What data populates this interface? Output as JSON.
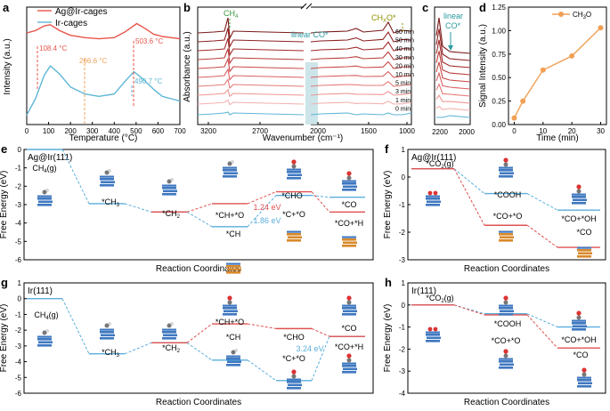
{
  "colors": {
    "ag_ir": "#e8554a",
    "ir": "#5fb6d6",
    "orange": "#f0a055",
    "teal": "#2b9aa0",
    "green": "#3a9a3a",
    "olive": "#8f8f00",
    "ch_dash": "#5aaedc",
    "co_dash": "#e05050",
    "struct_blue": "#3f78c0",
    "struct_orange": "#d9882a"
  },
  "panels": {
    "a": {
      "letter": "a",
      "ylabel": "Intensity (a.u.)",
      "xlabel": "Temperature (°C)",
      "legend": [
        "Ag@Ir-cages",
        "Ir-cages"
      ],
      "annotations": [
        "108.4 °C",
        "266.6 °C",
        "503.6 °C",
        "490.7 °C"
      ]
    },
    "b": {
      "letter": "b",
      "ylabel": "Absorbance (a.u.)",
      "xlabel": "Wavenumber (cm⁻¹)",
      "label_ch4": "CH",
      "label_ch4_sub": "4",
      "label_linear": "linear CO*",
      "label_chxo": "CH",
      "label_chxo_sub": "X",
      "label_chxo_tail": "O*",
      "times": [
        "60 min",
        "50 min",
        "40 min",
        "30 min",
        "20 min",
        "10 min",
        "5 min",
        "3 min",
        "1 min",
        "0 min"
      ]
    },
    "c": {
      "letter": "c",
      "label_line1": "linear",
      "label_line2": "CO*"
    },
    "d": {
      "letter": "d",
      "ylabel": "Signal Intensity (a.u.)",
      "xlabel": "Time (min)",
      "legend_main": "CH",
      "legend_sub": "3",
      "legend_tail": "O"
    },
    "e": {
      "letter": "e",
      "catalyst": "Ag@Ir(111)",
      "ylabel": "Free Energy (eV)",
      "xlabel": "Reaction Coordinates",
      "labels": [
        "CH",
        "*CH",
        "*CH",
        "*CH+*O",
        "*CH",
        "*CHO",
        "*C+*O",
        "*CO",
        "*CO+*H"
      ],
      "barriers": [
        "1.24 eV",
        "1.86 eV"
      ]
    },
    "f": {
      "letter": "f",
      "catalyst": "Ag@Ir(111)",
      "ylabel": "Free Energy (eV)",
      "xlabel": "Reaction Coordinates",
      "labels": [
        "*CO",
        "*COOH",
        "*CO+*O",
        "*CO+*OH",
        "*CO"
      ]
    },
    "g": {
      "letter": "g",
      "catalyst": "Ir(111)",
      "ylabel": "Free Energy (eV)",
      "xlabel": "Reaction Coordinates",
      "labels": [
        "CH",
        "*CH",
        "*CH",
        "*CH+*O",
        "*CH",
        "*CHO",
        "*C+*O",
        "*CO",
        "*CO+*H"
      ],
      "barriers": [
        "3.24 eV"
      ]
    },
    "h": {
      "letter": "h",
      "catalyst": "Ir(111)",
      "ylabel": "Free Energy (eV)",
      "xlabel": "Reaction Coordinates",
      "labels": [
        "*CO",
        "*COOH",
        "*CO+*O",
        "*CO+*OH",
        "*CO"
      ]
    }
  },
  "chart_data": [
    {
      "panel": "a",
      "type": "line",
      "title": "",
      "xlabel": "Temperature (°C)",
      "ylabel": "Intensity (a.u.)",
      "xlim": [
        0,
        700
      ],
      "ylim": [
        0,
        1
      ],
      "xticks": [
        0,
        100,
        200,
        300,
        400,
        500,
        600,
        700
      ],
      "series": [
        {
          "name": "Ag@Ir-cages",
          "x": [
            0,
            40,
            80,
            108,
            150,
            200,
            266,
            330,
            400,
            450,
            503,
            540,
            580,
            620,
            660,
            700
          ],
          "y": [
            0.78,
            0.8,
            0.84,
            0.85,
            0.8,
            0.76,
            0.74,
            0.73,
            0.74,
            0.79,
            0.86,
            0.82,
            0.77,
            0.75,
            0.74,
            0.73
          ]
        },
        {
          "name": "Ir-cages",
          "x": [
            0,
            40,
            80,
            108,
            150,
            200,
            266,
            330,
            400,
            450,
            490,
            530,
            580,
            620,
            660,
            700
          ],
          "y": [
            0.08,
            0.22,
            0.42,
            0.5,
            0.43,
            0.32,
            0.26,
            0.24,
            0.26,
            0.37,
            0.45,
            0.39,
            0.3,
            0.24,
            0.22,
            0.2
          ]
        }
      ]
    },
    {
      "panel": "b",
      "type": "line",
      "title": "",
      "xlabel": "Wavenumber (cm⁻¹)",
      "ylabel": "Absorbance (a.u.)",
      "xticks": [
        3200,
        2700,
        2000,
        1500,
        1000
      ],
      "series_names": [
        "60 min",
        "50 min",
        "40 min",
        "30 min",
        "20 min",
        "10 min",
        "5 min",
        "3 min",
        "1 min",
        "0 min"
      ]
    },
    {
      "panel": "c",
      "type": "line",
      "title": "",
      "xticks": [
        2200,
        2000
      ]
    },
    {
      "panel": "d",
      "type": "line",
      "title": "",
      "xlabel": "Time (min)",
      "ylabel": "Signal Intensity (a.u.)",
      "xlim": [
        -2,
        32
      ],
      "ylim": [
        0,
        1.25
      ],
      "xticks": [
        0,
        10,
        20,
        30
      ],
      "yticks": [
        0.0,
        0.25,
        0.5,
        0.75,
        1.0,
        1.25
      ],
      "series": [
        {
          "name": "CH3O",
          "x": [
            0,
            3,
            10,
            20,
            30
          ],
          "y": [
            0.07,
            0.25,
            0.58,
            0.73,
            1.03
          ]
        }
      ]
    },
    {
      "panel": "e",
      "type": "line",
      "title": "Ag@Ir(111)",
      "ylabel": "Free Energy (eV)",
      "xlabel": "Reaction Coordinates",
      "ylim": [
        -6,
        0
      ],
      "yticks": [
        0,
        -1,
        -2,
        -3,
        -4,
        -5,
        -6
      ],
      "blue_path": [
        0,
        -2.95,
        -3.4,
        -4.2,
        -2.5,
        -2.6
      ],
      "red_path": [
        -3.4,
        -2.95,
        -2.3,
        -3.4
      ]
    },
    {
      "panel": "f",
      "type": "line",
      "title": "Ag@Ir(111)",
      "ylabel": "Free Energy (eV)",
      "xlabel": "Reaction Coordinates",
      "ylim": [
        -3,
        1
      ],
      "yticks": [
        1,
        0,
        -1,
        -2,
        -3
      ],
      "blue_path": [
        0.3,
        -0.6,
        -1.2
      ],
      "red_path": [
        0.3,
        -1.75,
        -2.55
      ]
    },
    {
      "panel": "g",
      "type": "line",
      "title": "Ir(111)",
      "ylabel": "Free Energy (eV)",
      "xlabel": "Reaction Coordinates",
      "ylim": [
        -6,
        1
      ],
      "yticks": [
        1,
        0,
        -1,
        -2,
        -3,
        -4,
        -5,
        -6
      ],
      "blue_path": [
        0,
        -3.5,
        -2.8,
        -3.9,
        -5.2,
        -2.4
      ],
      "red_path": [
        -2.8,
        -1.6,
        -1.9,
        -2.4
      ]
    },
    {
      "panel": "h",
      "type": "line",
      "title": "Ir(111)",
      "ylabel": "Free Energy (eV)",
      "xlabel": "Reaction Coordinates",
      "ylim": [
        -4,
        1
      ],
      "yticks": [
        1,
        0,
        -1,
        -2,
        -3,
        -4
      ],
      "blue_path": [
        0,
        -0.4,
        -1.0
      ],
      "red_path": [
        0,
        -0.45,
        -1.95
      ]
    }
  ]
}
